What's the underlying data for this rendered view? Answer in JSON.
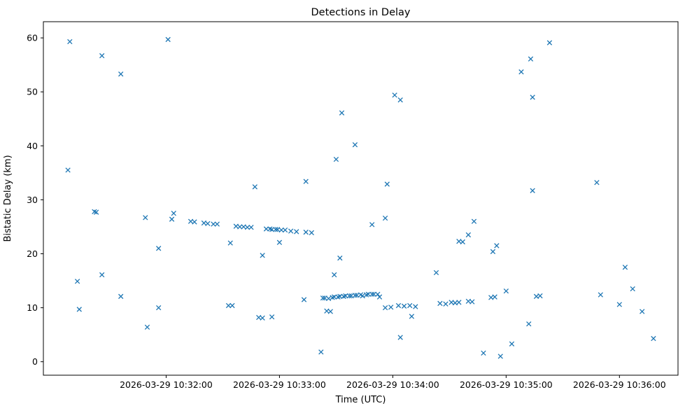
{
  "chart_data": {
    "type": "scatter",
    "title": "Detections in Delay",
    "xlabel": "Time (UTC)",
    "ylabel": "Bistatic Delay (km)",
    "marker": "x",
    "marker_color": "#1f77b4",
    "grid": false,
    "legend": "none",
    "x_encoding": "seconds after 2026-03-29 10:31:00 UTC",
    "xlim": [
      -5,
      331
    ],
    "ylim": [
      -2.5,
      63
    ],
    "x_ticks": [
      {
        "value": 60,
        "label": "2026-03-29 10:32:00"
      },
      {
        "value": 120,
        "label": "2026-03-29 10:33:00"
      },
      {
        "value": 180,
        "label": "2026-03-29 10:34:00"
      },
      {
        "value": 240,
        "label": "2026-03-29 10:35:00"
      },
      {
        "value": 300,
        "label": "2026-03-29 10:36:00"
      }
    ],
    "y_ticks": [
      0,
      10,
      20,
      30,
      40,
      50,
      60
    ],
    "points": [
      [
        8,
        35.5
      ],
      [
        9,
        59.3
      ],
      [
        13,
        14.9
      ],
      [
        14,
        9.7
      ],
      [
        22,
        27.8
      ],
      [
        23,
        27.7
      ],
      [
        26,
        56.7
      ],
      [
        26,
        16.1
      ],
      [
        36,
        53.3
      ],
      [
        36,
        12.1
      ],
      [
        49,
        26.7
      ],
      [
        50,
        6.4
      ],
      [
        56,
        21.0
      ],
      [
        56,
        10.0
      ],
      [
        61,
        59.7
      ],
      [
        63,
        26.4
      ],
      [
        64,
        27.5
      ],
      [
        73,
        26.0
      ],
      [
        75,
        25.9
      ],
      [
        80,
        25.7
      ],
      [
        82,
        25.6
      ],
      [
        85,
        25.5
      ],
      [
        87,
        25.5
      ],
      [
        93,
        10.4
      ],
      [
        94,
        22.0
      ],
      [
        95,
        10.4
      ],
      [
        97,
        25.1
      ],
      [
        99,
        25.0
      ],
      [
        101,
        25.0
      ],
      [
        103,
        24.9
      ],
      [
        105,
        24.9
      ],
      [
        107,
        32.4
      ],
      [
        109,
        8.2
      ],
      [
        111,
        19.7
      ],
      [
        111,
        8.1
      ],
      [
        113,
        24.6
      ],
      [
        115,
        24.6
      ],
      [
        116,
        24.5
      ],
      [
        116,
        8.3
      ],
      [
        118,
        24.5
      ],
      [
        119,
        24.5
      ],
      [
        120,
        22.1
      ],
      [
        121,
        24.4
      ],
      [
        123,
        24.4
      ],
      [
        126,
        24.2
      ],
      [
        129,
        24.1
      ],
      [
        133,
        11.5
      ],
      [
        134,
        33.4
      ],
      [
        134,
        24.0
      ],
      [
        137,
        23.9
      ],
      [
        142,
        1.8
      ],
      [
        143,
        11.8
      ],
      [
        144,
        11.8
      ],
      [
        145,
        9.4
      ],
      [
        146,
        11.7
      ],
      [
        147,
        9.3
      ],
      [
        148,
        11.9
      ],
      [
        149,
        16.1
      ],
      [
        149,
        12.0
      ],
      [
        150,
        37.5
      ],
      [
        151,
        12.0
      ],
      [
        152,
        19.2
      ],
      [
        152,
        12.1
      ],
      [
        153,
        46.1
      ],
      [
        154,
        12.1
      ],
      [
        155,
        12.2
      ],
      [
        157,
        12.2
      ],
      [
        158,
        12.2
      ],
      [
        160,
        40.2
      ],
      [
        160,
        12.3
      ],
      [
        161,
        12.3
      ],
      [
        163,
        12.4
      ],
      [
        164,
        12.2
      ],
      [
        166,
        12.4
      ],
      [
        167,
        12.5
      ],
      [
        169,
        25.4
      ],
      [
        169,
        12.5
      ],
      [
        170,
        12.5
      ],
      [
        172,
        12.5
      ],
      [
        173,
        12.0
      ],
      [
        176,
        26.6
      ],
      [
        176,
        10.0
      ],
      [
        177,
        32.9
      ],
      [
        179,
        10.1
      ],
      [
        181,
        49.4
      ],
      [
        183,
        10.4
      ],
      [
        184,
        48.5
      ],
      [
        184,
        4.5
      ],
      [
        186,
        10.3
      ],
      [
        189,
        10.4
      ],
      [
        190,
        8.4
      ],
      [
        192,
        10.2
      ],
      [
        203,
        16.5
      ],
      [
        205,
        10.8
      ],
      [
        208,
        10.7
      ],
      [
        211,
        11.0
      ],
      [
        213,
        10.9
      ],
      [
        215,
        22.3
      ],
      [
        215,
        11.0
      ],
      [
        217,
        22.2
      ],
      [
        220,
        23.5
      ],
      [
        220,
        11.2
      ],
      [
        222,
        11.1
      ],
      [
        223,
        26.0
      ],
      [
        228,
        1.6
      ],
      [
        232,
        11.9
      ],
      [
        233,
        20.4
      ],
      [
        234,
        12.0
      ],
      [
        235,
        21.5
      ],
      [
        237,
        1.0
      ],
      [
        240,
        13.1
      ],
      [
        243,
        3.3
      ],
      [
        248,
        53.7
      ],
      [
        252,
        7.0
      ],
      [
        253,
        56.1
      ],
      [
        254,
        49.0
      ],
      [
        254,
        31.7
      ],
      [
        256,
        12.1
      ],
      [
        258,
        12.2
      ],
      [
        263,
        59.1
      ],
      [
        288,
        33.2
      ],
      [
        290,
        12.4
      ],
      [
        300,
        10.6
      ],
      [
        303,
        17.5
      ],
      [
        307,
        13.5
      ],
      [
        312,
        9.3
      ],
      [
        318,
        4.3
      ]
    ]
  }
}
